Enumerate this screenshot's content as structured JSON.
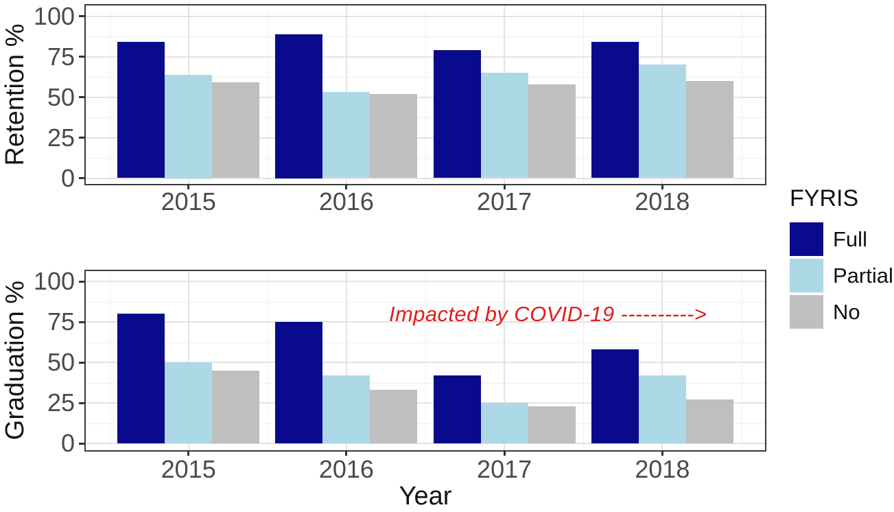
{
  "figure": {
    "xlabel": "Year",
    "legend": {
      "title": "FYRIS",
      "entries": [
        {
          "label": "Full",
          "color": "#0a0a8c"
        },
        {
          "label": "Partial",
          "color": "#add8e6"
        },
        {
          "label": "No",
          "color": "#bfbfbf"
        }
      ]
    }
  },
  "chart_data": [
    {
      "type": "bar",
      "title": "",
      "ylabel": "Retention %",
      "xlabel": "",
      "categories": [
        "2015",
        "2016",
        "2017",
        "2018"
      ],
      "series": [
        {
          "name": "Full",
          "values": [
            84,
            89,
            79,
            84
          ]
        },
        {
          "name": "Partial",
          "values": [
            64,
            53,
            65,
            70
          ]
        },
        {
          "name": "No",
          "values": [
            59,
            52,
            58,
            60
          ]
        }
      ],
      "ylim": [
        0,
        100
      ],
      "yticks": [
        0,
        25,
        50,
        75,
        100
      ],
      "grid": true,
      "legend_position": "right"
    },
    {
      "type": "bar",
      "title": "",
      "ylabel": "Graduation %",
      "xlabel": "Year",
      "categories": [
        "2015",
        "2016",
        "2017",
        "2018"
      ],
      "series": [
        {
          "name": "Full",
          "values": [
            80,
            75,
            42,
            58
          ]
        },
        {
          "name": "Partial",
          "values": [
            50,
            42,
            25,
            42
          ]
        },
        {
          "name": "No",
          "values": [
            45,
            33,
            23,
            27
          ]
        }
      ],
      "ylim": [
        0,
        100
      ],
      "yticks": [
        0,
        25,
        50,
        75,
        100
      ],
      "grid": true,
      "legend_position": "right",
      "annotation": {
        "text": "Impacted by COVID-19 ---------->",
        "color": "#e11c1c"
      }
    }
  ]
}
